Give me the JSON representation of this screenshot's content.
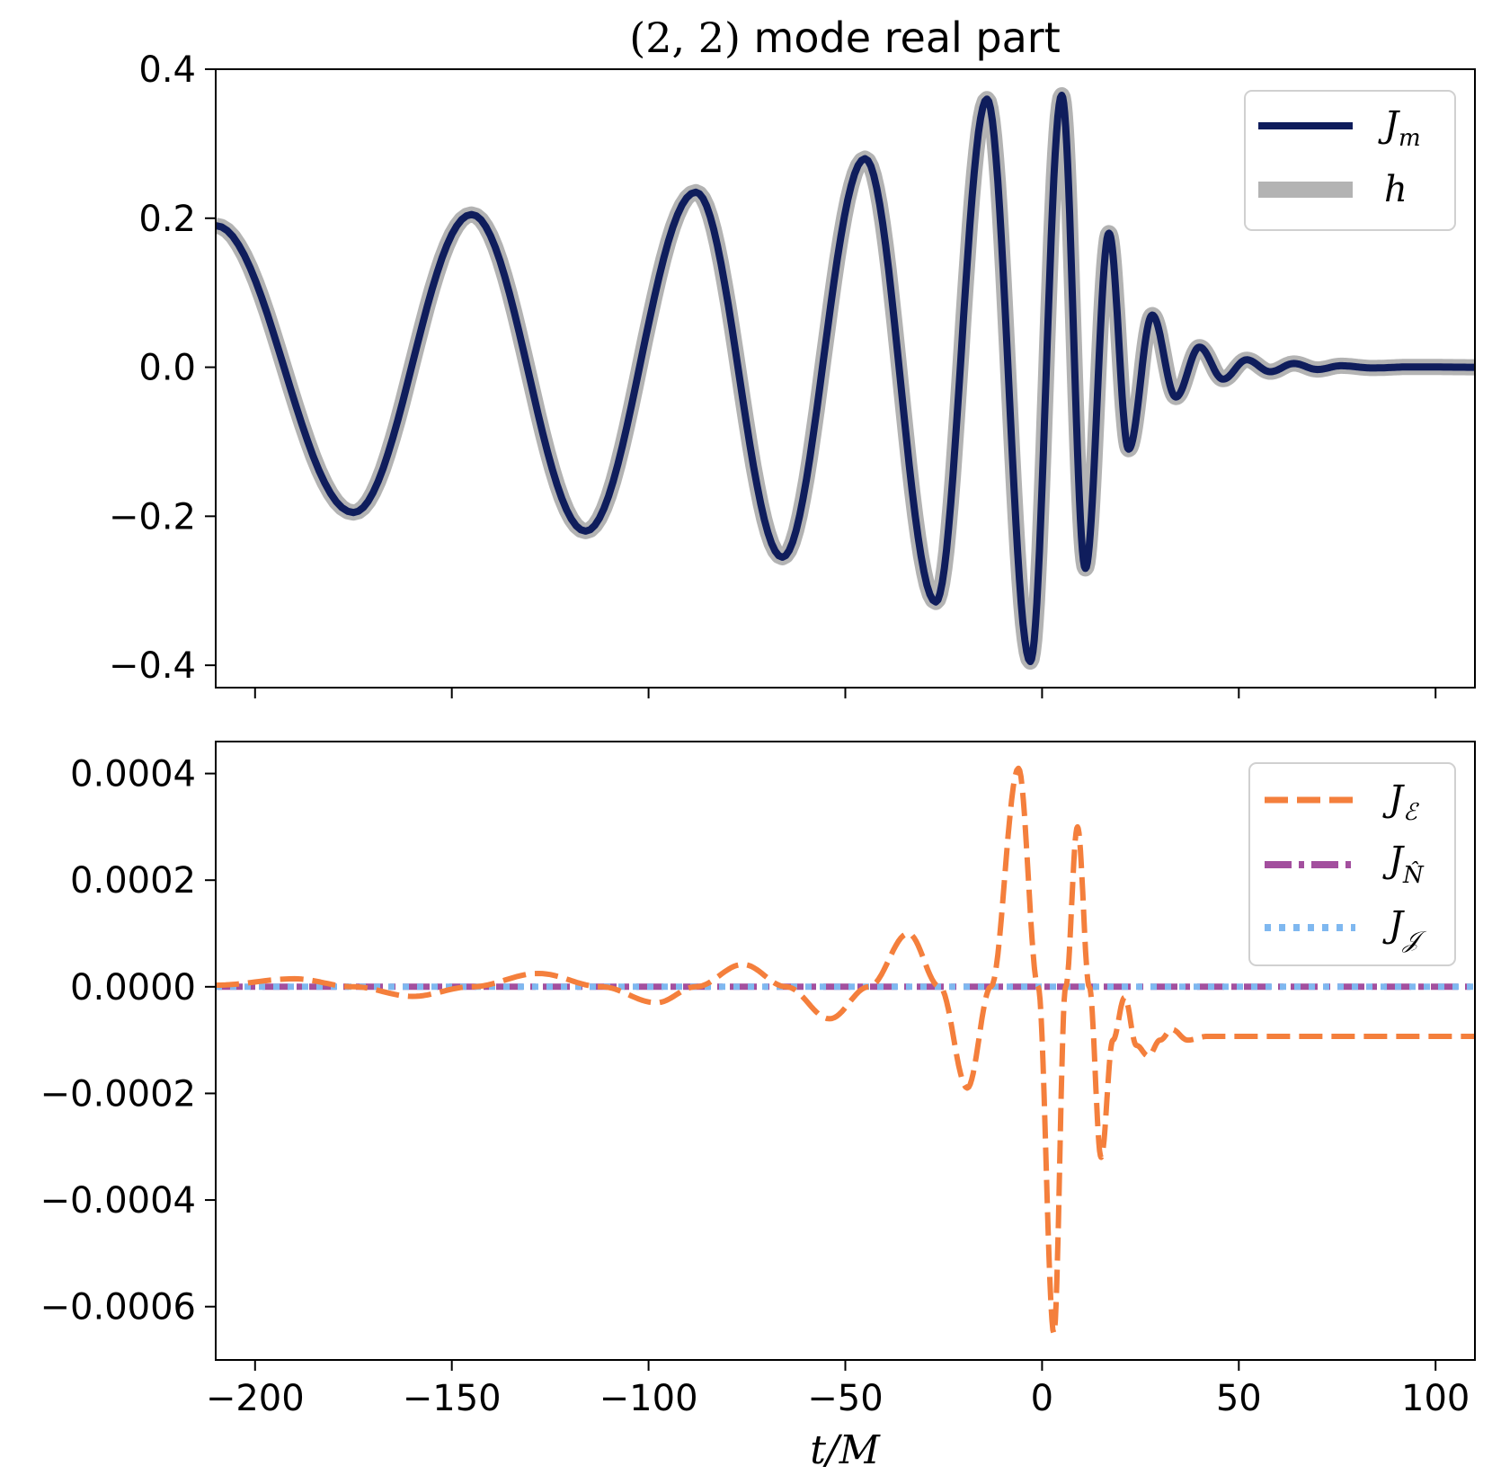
{
  "chart_data": [
    {
      "type": "line",
      "title_math": "(2, 2)",
      "title_text": " mode real part",
      "xlim": [
        -210,
        110
      ],
      "ylim": [
        -0.43,
        0.4
      ],
      "yticks": [
        "0.4",
        "0.2",
        "0.0",
        "−0.2",
        "−0.4"
      ],
      "ytick_values": [
        0.4,
        0.2,
        0.0,
        -0.2,
        -0.4
      ],
      "xtick_values": [
        -200,
        -150,
        -100,
        -50,
        0,
        50,
        100
      ],
      "legend_position": "top-right",
      "series": [
        {
          "name": "h",
          "legend_main": "h",
          "legend_sub": "",
          "color": "#b3b3b3",
          "style": "solid",
          "model": "ringdown",
          "amp": [
            0.19,
            0.21,
            0.235,
            0.28,
            0.36,
            0.36,
            0.18,
            0.07,
            0.028,
            0.01,
            0.004,
            0.001
          ]
        },
        {
          "name": "J_m",
          "legend_main": "J",
          "legend_sub": "m",
          "color": "#0f1d5c",
          "style": "solid",
          "model": "ringdown"
        }
      ]
    },
    {
      "type": "line",
      "xlabel": "t/M",
      "xlim": [
        -210,
        110
      ],
      "ylim": [
        -0.0007,
        0.00046
      ],
      "yticks": [
        "0.0004",
        "0.0002",
        "0.0000",
        "−0.0002",
        "−0.0004",
        "−0.0006"
      ],
      "ytick_values": [
        0.0004,
        0.0002,
        0.0,
        -0.0002,
        -0.0004,
        -0.0006
      ],
      "xticks": [
        "−200",
        "−150",
        "−100",
        "−50",
        "0",
        "50",
        "100"
      ],
      "xtick_values": [
        -200,
        -150,
        -100,
        -50,
        0,
        50,
        100
      ],
      "legend_position": "top-right",
      "series": [
        {
          "name": "J_E",
          "legend_main": "J",
          "legend_sub": "ℰ",
          "color": "#f47f3c",
          "style": "dashed",
          "points": [
            [
              -210,
              3e-06
            ],
            [
              -190,
              1.5e-05
            ],
            [
              -175,
              0.0
            ],
            [
              -160,
              -1.8e-05
            ],
            [
              -145,
              0.0
            ],
            [
              -128,
              2.5e-05
            ],
            [
              -112,
              0.0
            ],
            [
              -98,
              -3e-05
            ],
            [
              -88,
              0.0
            ],
            [
              -76,
              4.2e-05
            ],
            [
              -65,
              0.0
            ],
            [
              -54,
              -6e-05
            ],
            [
              -44,
              0.0
            ],
            [
              -34,
              0.0001
            ],
            [
              -26,
              0.0
            ],
            [
              -19,
              -0.00019
            ],
            [
              -13,
              0.0
            ],
            [
              -6,
              0.00041
            ],
            [
              -1,
              0.0
            ],
            [
              3,
              -0.00065
            ],
            [
              6,
              0.0
            ],
            [
              9,
              0.0003
            ],
            [
              12,
              0.0
            ],
            [
              15,
              -0.00032
            ],
            [
              18,
              -0.0001
            ],
            [
              21,
              -2e-05
            ],
            [
              24,
              -0.00011
            ],
            [
              27,
              -0.00013
            ],
            [
              30,
              -0.0001
            ],
            [
              33,
              -8e-05
            ],
            [
              37,
              -0.0001
            ],
            [
              42,
              -9.3e-05
            ],
            [
              110,
              -9.3e-05
            ]
          ]
        },
        {
          "name": "J_N",
          "legend_main": "J",
          "legend_sub": "N̂",
          "color": "#a34f9e",
          "style": "dashdot",
          "points": [
            [
              -210,
              0.0
            ],
            [
              110,
              0.0
            ]
          ]
        },
        {
          "name": "J_J",
          "legend_main": "J",
          "legend_sub": "𝒥",
          "color": "#7fb8f0",
          "style": "dotted",
          "points": [
            [
              -210,
              0.0
            ],
            [
              110,
              0.0
            ]
          ]
        }
      ]
    }
  ]
}
